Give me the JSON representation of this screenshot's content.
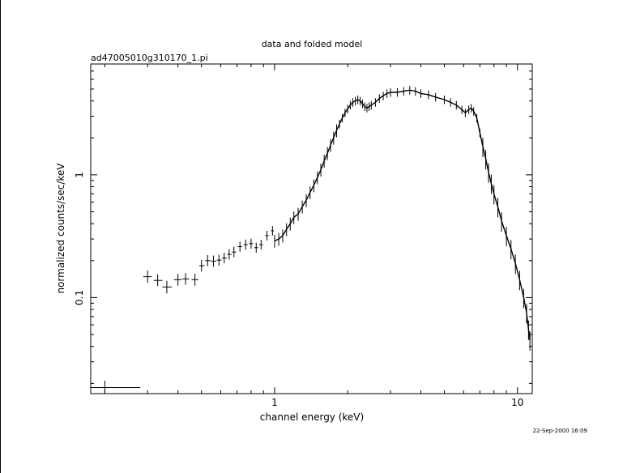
{
  "chart_data": {
    "type": "scatter",
    "title": "data and folded model",
    "subtitle": "ad47005010g310170_1.pi",
    "xlabel": "channel energy (keV)",
    "ylabel": "normalized counts/sec/keV",
    "x_scale": "log",
    "y_scale": "log",
    "xlim": [
      0.175,
      11.5
    ],
    "ylim": [
      0.0165,
      8.0
    ],
    "x_tick_labels": [
      {
        "value": 1,
        "label": "1"
      },
      {
        "value": 10,
        "label": "10"
      }
    ],
    "y_tick_labels": [
      {
        "value": 0.1,
        "label": "0.1"
      },
      {
        "value": 1,
        "label": "1"
      }
    ],
    "grid": false,
    "footer": "22-Sep-2000 16:09",
    "series": [
      {
        "points": [
          {
            "x": 0.2,
            "y": 0.0185,
            "xerr": [
              0.175,
              0.28
            ],
            "yerr": [
              0.0165,
              0.021
            ]
          },
          {
            "x": 0.3,
            "y": 0.148,
            "xerr": [
              0.288,
              0.312
            ],
            "yerr": [
              0.132,
              0.166
            ]
          },
          {
            "x": 0.33,
            "y": 0.138,
            "xerr": [
              0.318,
              0.345
            ],
            "yerr": [
              0.124,
              0.155
            ]
          },
          {
            "x": 0.36,
            "y": 0.122,
            "xerr": [
              0.345,
              0.378
            ],
            "yerr": [
              0.108,
              0.137
            ]
          },
          {
            "x": 0.4,
            "y": 0.14,
            "xerr": [
              0.385,
              0.415
            ],
            "yerr": [
              0.125,
              0.156
            ]
          },
          {
            "x": 0.43,
            "y": 0.142,
            "xerr": [
              0.417,
              0.445
            ],
            "yerr": [
              0.127,
              0.158
            ]
          },
          {
            "x": 0.47,
            "y": 0.14,
            "xerr": [
              0.455,
              0.485
            ],
            "yerr": [
              0.125,
              0.156
            ]
          },
          {
            "x": 0.5,
            "y": 0.182,
            "xerr": [
              0.49,
              0.515
            ],
            "yerr": [
              0.163,
              0.203
            ]
          },
          {
            "x": 0.53,
            "y": 0.2,
            "xerr": [
              0.518,
              0.545
            ],
            "yerr": [
              0.18,
              0.222
            ]
          },
          {
            "x": 0.56,
            "y": 0.198,
            "xerr": [
              0.548,
              0.575
            ],
            "yerr": [
              0.178,
              0.22
            ]
          },
          {
            "x": 0.59,
            "y": 0.202,
            "xerr": [
              0.578,
              0.605
            ],
            "yerr": [
              0.182,
              0.224
            ]
          },
          {
            "x": 0.62,
            "y": 0.21,
            "xerr": [
              0.608,
              0.635
            ],
            "yerr": [
              0.19,
              0.232
            ]
          },
          {
            "x": 0.65,
            "y": 0.225,
            "xerr": [
              0.638,
              0.665
            ],
            "yerr": [
              0.204,
              0.248
            ]
          },
          {
            "x": 0.68,
            "y": 0.235,
            "xerr": [
              0.668,
              0.695
            ],
            "yerr": [
              0.213,
              0.259
            ]
          },
          {
            "x": 0.72,
            "y": 0.26,
            "xerr": [
              0.705,
              0.735
            ],
            "yerr": [
              0.236,
              0.286
            ]
          },
          {
            "x": 0.76,
            "y": 0.27,
            "xerr": [
              0.745,
              0.775
            ],
            "yerr": [
              0.245,
              0.297
            ]
          },
          {
            "x": 0.8,
            "y": 0.275,
            "xerr": [
              0.785,
              0.815
            ],
            "yerr": [
              0.25,
              0.302
            ]
          },
          {
            "x": 0.84,
            "y": 0.255,
            "xerr": [
              0.825,
              0.855
            ],
            "yerr": [
              0.232,
              0.28
            ]
          },
          {
            "x": 0.88,
            "y": 0.27,
            "xerr": [
              0.865,
              0.895
            ],
            "yerr": [
              0.246,
              0.296
            ]
          },
          {
            "x": 0.93,
            "y": 0.32,
            "xerr": [
              0.915,
              0.945
            ],
            "yerr": [
              0.292,
              0.35
            ]
          },
          {
            "x": 0.98,
            "y": 0.35,
            "xerr": [
              0.965,
              0.995
            ],
            "yerr": [
              0.32,
              0.382
            ]
          }
        ]
      },
      {
        "points": [
          [
            1.0,
            0.29
          ],
          [
            1.04,
            0.3
          ],
          [
            1.08,
            0.32
          ],
          [
            1.12,
            0.36
          ],
          [
            1.16,
            0.4
          ],
          [
            1.2,
            0.45
          ],
          [
            1.25,
            0.48
          ],
          [
            1.3,
            0.55
          ],
          [
            1.35,
            0.62
          ],
          [
            1.4,
            0.72
          ],
          [
            1.45,
            0.82
          ],
          [
            1.5,
            0.95
          ],
          [
            1.55,
            1.1
          ],
          [
            1.6,
            1.3
          ],
          [
            1.65,
            1.5
          ],
          [
            1.7,
            1.75
          ],
          [
            1.75,
            2.0
          ],
          [
            1.8,
            2.3
          ],
          [
            1.85,
            2.6
          ],
          [
            1.9,
            2.9
          ],
          [
            1.95,
            3.2
          ],
          [
            2.0,
            3.45
          ],
          [
            2.05,
            3.7
          ],
          [
            2.1,
            3.9
          ],
          [
            2.15,
            4.0
          ],
          [
            2.2,
            4.1
          ],
          [
            2.25,
            4.0
          ],
          [
            2.3,
            3.8
          ],
          [
            2.35,
            3.6
          ],
          [
            2.4,
            3.5
          ],
          [
            2.45,
            3.6
          ],
          [
            2.5,
            3.7
          ],
          [
            2.6,
            3.9
          ],
          [
            2.7,
            4.2
          ],
          [
            2.8,
            4.4
          ],
          [
            2.9,
            4.6
          ],
          [
            3.0,
            4.7
          ],
          [
            3.2,
            4.7
          ],
          [
            3.4,
            4.8
          ],
          [
            3.6,
            4.9
          ],
          [
            3.8,
            4.8
          ],
          [
            4.0,
            4.6
          ],
          [
            4.3,
            4.5
          ],
          [
            4.6,
            4.3
          ],
          [
            5.0,
            4.1
          ],
          [
            5.3,
            3.9
          ],
          [
            5.6,
            3.7
          ],
          [
            5.9,
            3.4
          ],
          [
            6.1,
            3.2
          ],
          [
            6.3,
            3.4
          ],
          [
            6.45,
            3.5
          ],
          [
            6.6,
            3.3
          ],
          [
            6.8,
            2.9
          ],
          [
            7.0,
            2.2
          ],
          [
            7.2,
            1.7
          ],
          [
            7.4,
            1.35
          ],
          [
            7.6,
            1.05
          ],
          [
            7.8,
            0.85
          ],
          [
            8.0,
            0.7
          ],
          [
            8.3,
            0.55
          ],
          [
            8.6,
            0.42
          ],
          [
            9.0,
            0.32
          ],
          [
            9.4,
            0.25
          ],
          [
            9.8,
            0.19
          ],
          [
            10.2,
            0.14
          ],
          [
            10.6,
            0.1
          ],
          [
            10.9,
            0.075
          ],
          [
            11.1,
            0.055
          ],
          [
            11.25,
            0.045
          ]
        ]
      }
    ]
  }
}
